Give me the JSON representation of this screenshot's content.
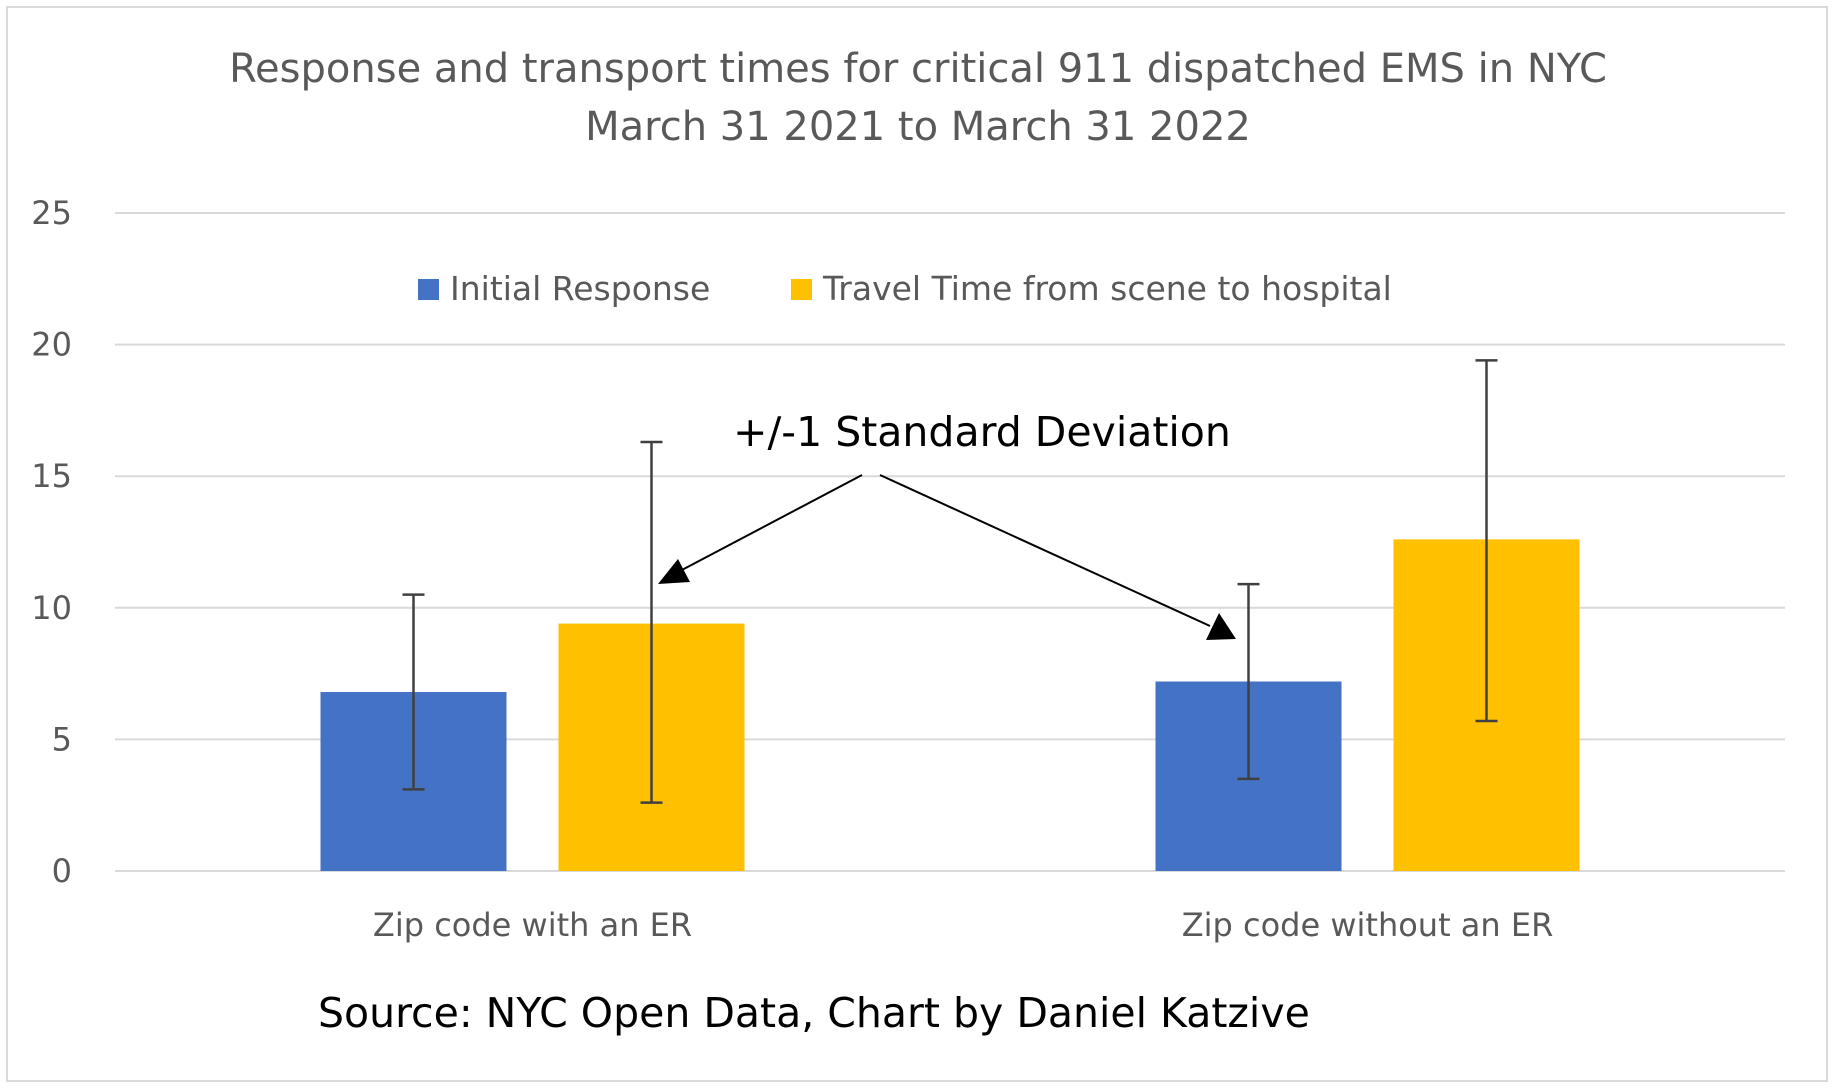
{
  "chart_data": {
    "type": "bar",
    "title": "Response and transport times for critical 911 dispatched EMS in NYC",
    "subtitle": "March 31 2021 to March 31 2022",
    "xlabel": "",
    "ylabel": "",
    "ylim": [
      0,
      25
    ],
    "yticks": [
      "0",
      "5",
      "10",
      "15",
      "20",
      "25"
    ],
    "grid": true,
    "legend_position": "top",
    "categories": [
      "Zip code with an ER",
      "Zip code without an ER"
    ],
    "series": [
      {
        "name": "Initial Response",
        "color": "#4472C4",
        "values": [
          6.8,
          7.2
        ],
        "error_low": [
          3.1,
          3.5
        ],
        "error_high": [
          10.5,
          10.9
        ]
      },
      {
        "name": "Travel Time from scene to hospital",
        "color": "#FFC000",
        "values": [
          9.4,
          12.6
        ],
        "error_low": [
          2.6,
          5.7
        ],
        "error_high": [
          16.3,
          19.4
        ]
      }
    ],
    "annotation": "+/-1 Standard Deviation",
    "source": "Source:  NYC Open Data, Chart by Daniel Katzive"
  }
}
